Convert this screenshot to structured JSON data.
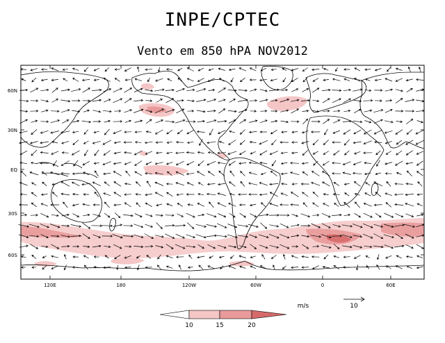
{
  "header": {
    "title": "INPE/CPTEC",
    "subtitle": "Vento em 850 hPA NOV2012"
  },
  "map": {
    "lat_labels": [
      "60N",
      "30N",
      "EQ",
      "30S",
      "60S"
    ],
    "lon_labels": [
      "120E",
      "180",
      "120W",
      "60W",
      "0",
      "60E"
    ],
    "colors": {
      "shade_10_15": "#f5c6c6",
      "shade_15_20": "#e99a9a",
      "shade_20": "#d66a6a",
      "coast": "#000000",
      "arrow": "#000000"
    }
  },
  "legend": {
    "units": "m/s",
    "ref_value": "10",
    "ticks": [
      "10",
      "15",
      "20"
    ]
  }
}
